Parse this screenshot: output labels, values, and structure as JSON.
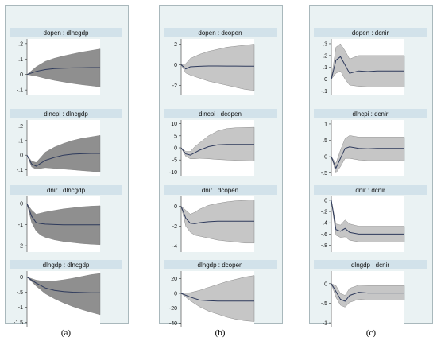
{
  "panel_labels": [
    "(a)",
    "(b)",
    "(c)"
  ],
  "colors": {
    "column_background": "#eaf2f3",
    "title_bar": "#d2e2ea",
    "ci_band_a": "#8f8f8f",
    "ci_band_bc": "#c6c6c6",
    "irf_line": "#2e3a5c",
    "zero_line": "#333333"
  },
  "chart_data": [
    {
      "type": "area",
      "title": "dopen : dlncgdp",
      "column": 0,
      "row": 0,
      "ylim": [
        -0.13,
        0.23
      ],
      "yticks": [
        -0.1,
        0,
        0.1,
        0.2
      ],
      "ytick_labels": [
        "-.1",
        "0",
        ".1",
        ".2"
      ],
      "x": [
        0,
        1,
        2,
        3,
        4,
        5,
        6,
        7,
        8
      ],
      "irf": [
        0,
        0.02,
        0.032,
        0.038,
        0.041,
        0.043,
        0.044,
        0.045,
        0.045
      ],
      "lower": [
        0,
        -0.01,
        -0.025,
        -0.038,
        -0.048,
        -0.058,
        -0.066,
        -0.073,
        -0.08
      ],
      "upper": [
        0,
        0.05,
        0.085,
        0.105,
        0.12,
        0.133,
        0.145,
        0.155,
        0.165
      ]
    },
    {
      "type": "area",
      "title": "dlncpi : dlncgdp",
      "column": 0,
      "row": 1,
      "ylim": [
        -0.14,
        0.24
      ],
      "yticks": [
        -0.1,
        0,
        0.1,
        0.2
      ],
      "ytick_labels": [
        "-.1",
        "0",
        ".1",
        ".2"
      ],
      "x": [
        0,
        0.5,
        1,
        1.5,
        2,
        3,
        4,
        5,
        6,
        7,
        8
      ],
      "irf": [
        0,
        -0.06,
        -0.075,
        -0.055,
        -0.035,
        -0.015,
        0,
        0.007,
        0.01,
        0.012,
        0.012
      ],
      "lower": [
        0,
        -0.08,
        -0.095,
        -0.09,
        -0.085,
        -0.09,
        -0.095,
        -0.1,
        -0.105,
        -0.11,
        -0.115
      ],
      "upper": [
        0,
        -0.04,
        -0.05,
        -0.015,
        0.02,
        0.055,
        0.08,
        0.1,
        0.115,
        0.125,
        0.135
      ]
    },
    {
      "type": "area",
      "title": "dnir : dlncgdp",
      "column": 0,
      "row": 2,
      "ylim": [
        -2.3,
        0.35
      ],
      "yticks": [
        -2,
        -1,
        0
      ],
      "ytick_labels": [
        "-2",
        "-1",
        "0"
      ],
      "x": [
        0,
        0.5,
        1,
        1.5,
        2,
        3,
        4,
        5,
        6,
        7,
        8
      ],
      "irf": [
        0,
        -0.6,
        -0.9,
        -0.95,
        -0.97,
        -0.99,
        -1.0,
        -1.0,
        -1.0,
        -1.0,
        -1.0
      ],
      "lower": [
        0,
        -0.9,
        -1.3,
        -1.5,
        -1.6,
        -1.72,
        -1.8,
        -1.85,
        -1.9,
        -1.93,
        -1.95
      ],
      "upper": [
        0,
        -0.3,
        -0.5,
        -0.45,
        -0.4,
        -0.32,
        -0.25,
        -0.2,
        -0.15,
        -0.12,
        -0.1
      ]
    },
    {
      "type": "area",
      "title": "dlngdp : dlncgdp",
      "column": 0,
      "row": 3,
      "ylim": [
        -1.65,
        0.2
      ],
      "yticks": [
        -1.5,
        -1,
        -0.5,
        0
      ],
      "ytick_labels": [
        "-1.5",
        "-1",
        "-.5",
        "0"
      ],
      "x": [
        0,
        1,
        2,
        3,
        4,
        5,
        6,
        7,
        8
      ],
      "irf": [
        0,
        -0.2,
        -0.36,
        -0.44,
        -0.48,
        -0.5,
        -0.51,
        -0.52,
        -0.52
      ],
      "lower": [
        0,
        -0.3,
        -0.55,
        -0.72,
        -0.86,
        -0.98,
        -1.08,
        -1.17,
        -1.25
      ],
      "upper": [
        0,
        -0.1,
        -0.15,
        -0.13,
        -0.09,
        -0.04,
        0.02,
        0.08,
        0.12
      ]
    },
    {
      "type": "area",
      "title": "dopen : dcopen",
      "column": 1,
      "row": 0,
      "ylim": [
        -2.9,
        2.5
      ],
      "yticks": [
        -2,
        0,
        2
      ],
      "ytick_labels": [
        "-2",
        "0",
        "2"
      ],
      "x": [
        0,
        0.5,
        1,
        2,
        3,
        4,
        5,
        6,
        7,
        8
      ],
      "irf": [
        0,
        -0.4,
        -0.2,
        -0.15,
        -0.12,
        -0.12,
        -0.13,
        -0.13,
        -0.14,
        -0.14
      ],
      "lower": [
        0,
        -0.8,
        -1.0,
        -1.3,
        -1.6,
        -1.8,
        -2.0,
        -2.2,
        -2.4,
        -2.5
      ],
      "upper": [
        0,
        0.1,
        0.6,
        1.0,
        1.3,
        1.5,
        1.7,
        1.8,
        1.9,
        2.0
      ]
    },
    {
      "type": "area",
      "title": "dlncpi : dcopen",
      "column": 1,
      "row": 1,
      "ylim": [
        -11.5,
        11.5
      ],
      "yticks": [
        -10,
        -5,
        0,
        5,
        10
      ],
      "ytick_labels": [
        "-10",
        "-5",
        "0",
        "5",
        "10"
      ],
      "x": [
        0,
        0.5,
        1,
        1.5,
        2,
        3,
        4,
        5,
        6,
        7,
        8
      ],
      "irf": [
        0,
        -2.5,
        -3.0,
        -2.0,
        -1.0,
        0.5,
        1.2,
        1.4,
        1.4,
        1.4,
        1.4
      ],
      "lower": [
        0,
        -3.5,
        -4.5,
        -4.5,
        -4.3,
        -4.5,
        -4.8,
        -5.0,
        -5.2,
        -5.3,
        -5.4
      ],
      "upper": [
        0,
        -1.5,
        -1.5,
        0.5,
        2.0,
        5.0,
        7.0,
        8.0,
        8.3,
        8.4,
        8.5
      ]
    },
    {
      "type": "area",
      "title": "dnir : dcopen",
      "column": 1,
      "row": 2,
      "ylim": [
        -4.6,
        1.0
      ],
      "yticks": [
        -4,
        -2,
        0
      ],
      "ytick_labels": [
        "-4",
        "-2",
        "0"
      ],
      "x": [
        0,
        0.5,
        1,
        1.5,
        2,
        3,
        4,
        5,
        6,
        7,
        8
      ],
      "irf": [
        0,
        -1.2,
        -1.7,
        -1.75,
        -1.65,
        -1.55,
        -1.5,
        -1.5,
        -1.5,
        -1.5,
        -1.5
      ],
      "lower": [
        0,
        -2.0,
        -2.6,
        -2.9,
        -3.0,
        -3.2,
        -3.4,
        -3.5,
        -3.6,
        -3.7,
        -3.7
      ],
      "upper": [
        0,
        -0.4,
        -0.8,
        -0.6,
        -0.3,
        0.1,
        0.3,
        0.45,
        0.55,
        0.6,
        0.65
      ]
    },
    {
      "type": "area",
      "title": "dlngdp : dcopen",
      "column": 1,
      "row": 3,
      "ylim": [
        -45,
        30
      ],
      "yticks": [
        -40,
        -20,
        0,
        20
      ],
      "ytick_labels": [
        "-40",
        "-20",
        "0",
        "20"
      ],
      "x": [
        0,
        1,
        2,
        3,
        4,
        5,
        6,
        7,
        8
      ],
      "irf": [
        0,
        -5,
        -9,
        -10,
        -10.5,
        -10.5,
        -10.5,
        -10.5,
        -10.5
      ],
      "lower": [
        0,
        -10,
        -18,
        -24,
        -28,
        -32,
        -35,
        -37,
        -38
      ],
      "upper": [
        0,
        1,
        4,
        8,
        12,
        16,
        19,
        22,
        24
      ]
    },
    {
      "type": "area",
      "title": "dopen : dcnir",
      "column": 2,
      "row": 0,
      "ylim": [
        -0.13,
        0.34
      ],
      "yticks": [
        -0.1,
        0,
        0.1,
        0.2,
        0.3
      ],
      "ytick_labels": [
        "-.1",
        "0",
        ".1",
        ".2",
        ".3"
      ],
      "x": [
        0,
        0.5,
        1,
        1.5,
        2,
        3,
        4,
        5,
        6,
        7,
        8
      ],
      "irf": [
        0,
        0.16,
        0.19,
        0.12,
        0.05,
        0.07,
        0.065,
        0.07,
        0.07,
        0.07,
        0.07
      ],
      "lower": [
        0,
        0.05,
        0.07,
        0.0,
        -0.05,
        -0.06,
        -0.065,
        -0.065,
        -0.065,
        -0.065,
        -0.065
      ],
      "upper": [
        0,
        0.27,
        0.3,
        0.24,
        0.17,
        0.2,
        0.2,
        0.2,
        0.2,
        0.2,
        0.2
      ]
    },
    {
      "type": "area",
      "title": "dlncpi : dcnir",
      "column": 2,
      "row": 1,
      "ylim": [
        -0.58,
        1.12
      ],
      "yticks": [
        -0.5,
        0,
        0.5,
        1
      ],
      "ytick_labels": [
        "-.5",
        "0",
        ".5",
        "1"
      ],
      "x": [
        0,
        0.5,
        1,
        1.5,
        2,
        3,
        4,
        5,
        6,
        7,
        8
      ],
      "irf": [
        0,
        -0.35,
        -0.05,
        0.25,
        0.3,
        0.25,
        0.24,
        0.25,
        0.25,
        0.25,
        0.25
      ],
      "lower": [
        0,
        -0.5,
        -0.3,
        -0.05,
        -0.05,
        -0.1,
        -0.12,
        -0.12,
        -0.12,
        -0.12,
        -0.12
      ],
      "upper": [
        0,
        -0.2,
        0.2,
        0.55,
        0.65,
        0.6,
        0.6,
        0.6,
        0.6,
        0.6,
        0.6
      ]
    },
    {
      "type": "area",
      "title": "dnir : dcnir",
      "column": 2,
      "row": 2,
      "ylim": [
        -0.92,
        0.07
      ],
      "yticks": [
        -0.8,
        -0.6,
        -0.4,
        -0.2,
        0
      ],
      "ytick_labels": [
        "-.8",
        "-.6",
        "-.4",
        "-.2",
        "0"
      ],
      "x": [
        0,
        0.5,
        1,
        1.5,
        2,
        3,
        4,
        5,
        6,
        7,
        8
      ],
      "irf": [
        0,
        -0.52,
        -0.55,
        -0.5,
        -0.57,
        -0.6,
        -0.6,
        -0.6,
        -0.6,
        -0.6,
        -0.6
      ],
      "lower": [
        0,
        -0.62,
        -0.66,
        -0.65,
        -0.71,
        -0.74,
        -0.74,
        -0.74,
        -0.74,
        -0.74,
        -0.74
      ],
      "upper": [
        0,
        -0.42,
        -0.44,
        -0.35,
        -0.42,
        -0.46,
        -0.46,
        -0.46,
        -0.46,
        -0.46,
        -0.46
      ]
    },
    {
      "type": "area",
      "title": "dlngdp : dcnir",
      "column": 2,
      "row": 3,
      "ylim": [
        -1.1,
        0.32
      ],
      "yticks": [
        -1,
        -0.5,
        0
      ],
      "ytick_labels": [
        "-1",
        "-.5",
        "0"
      ],
      "x": [
        0,
        0.5,
        1,
        1.5,
        2,
        3,
        4,
        5,
        6,
        7,
        8
      ],
      "irf": [
        0,
        -0.2,
        -0.4,
        -0.45,
        -0.3,
        -0.22,
        -0.24,
        -0.24,
        -0.24,
        -0.24,
        -0.24
      ],
      "lower": [
        0,
        -0.35,
        -0.55,
        -0.6,
        -0.48,
        -0.4,
        -0.42,
        -0.42,
        -0.42,
        -0.42,
        -0.42
      ],
      "upper": [
        0,
        -0.05,
        -0.25,
        -0.3,
        -0.12,
        -0.04,
        -0.05,
        -0.05,
        -0.05,
        -0.05,
        -0.05
      ]
    }
  ]
}
